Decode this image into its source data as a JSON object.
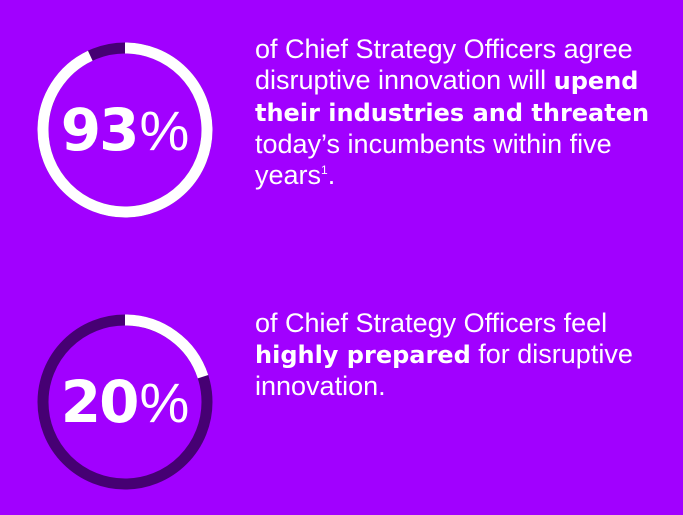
{
  "colors": {
    "background": "#a100ff",
    "ring_fill": "#ffffff",
    "ring_track": "#460073",
    "text": "#ffffff"
  },
  "stats": [
    {
      "percent_number": "93",
      "percent_sign": "%",
      "value": 0.93,
      "text_before": "of Chief Strategy Officers agree disruptive innovation will ",
      "emphasis": "upend their industries and threaten",
      "text_after": " today’s incumbents within five years",
      "footnote": "1",
      "end_punct": "."
    },
    {
      "percent_number": "20",
      "percent_sign": "%",
      "value": 0.2,
      "text_before": "of Chief Strategy Officers feel ",
      "emphasis": "highly prepared",
      "text_after": " for disruptive innovation.",
      "footnote": "",
      "end_punct": ""
    }
  ]
}
